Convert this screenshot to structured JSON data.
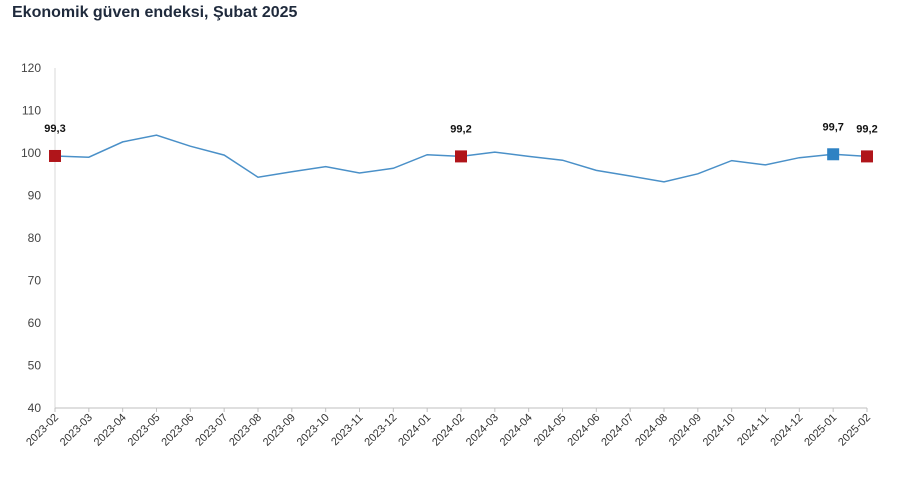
{
  "chart_data": {
    "type": "line",
    "title": "Ekonomik güven endeksi, Şubat 2025",
    "xlabel": "",
    "ylabel": "",
    "ylim": [
      40,
      120
    ],
    "yticks": [
      "40",
      "50",
      "60",
      "70",
      "80",
      "90",
      "100",
      "110",
      "120"
    ],
    "grid": false,
    "categories": [
      "2023-02",
      "2023-03",
      "2023-04",
      "2023-05",
      "2023-06",
      "2023-07",
      "2023-08",
      "2023-09",
      "2023-10",
      "2023-11",
      "2023-12",
      "2024-01",
      "2024-02",
      "2024-03",
      "2024-04",
      "2024-05",
      "2024-06",
      "2024-07",
      "2024-08",
      "2024-09",
      "2024-10",
      "2024-11",
      "2024-12",
      "2025-01",
      "2025-02"
    ],
    "series": [
      {
        "values": [
          99.3,
          99.0,
          102.6,
          104.2,
          101.6,
          99.5,
          94.3,
          95.6,
          96.8,
          95.3,
          96.4,
          99.6,
          99.2,
          100.2,
          99.2,
          98.3,
          95.9,
          94.6,
          93.2,
          95.1,
          98.2,
          97.2,
          98.9,
          99.7,
          99.2
        ],
        "color": "#4a90c8"
      }
    ],
    "markers": [
      {
        "index": 0,
        "label": "99,3",
        "color": "#b0151a"
      },
      {
        "index": 12,
        "label": "99,2",
        "color": "#b0151a"
      },
      {
        "index": 23,
        "label": "99,7",
        "color": "#2e82c3"
      },
      {
        "index": 24,
        "label": "99,2",
        "color": "#b0151a"
      }
    ]
  }
}
